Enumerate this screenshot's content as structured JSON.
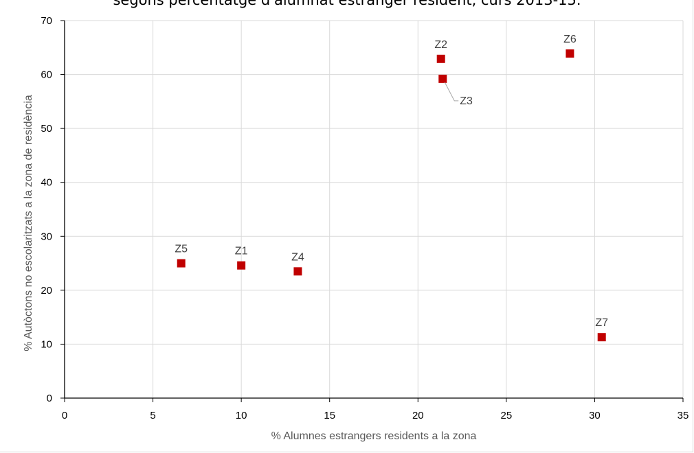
{
  "chart_data": {
    "type": "scatter",
    "title": "segons percentatge d'alumnat estranger resident, curs 2013-15.",
    "xlabel": "% Alumnes estrangers residents a la zona",
    "ylabel": "% Autòctons no escolaritzats a la zona de residència",
    "xlim": [
      0,
      35
    ],
    "ylim": [
      0,
      70
    ],
    "xticks": [
      0,
      5,
      10,
      15,
      20,
      25,
      30,
      35
    ],
    "yticks": [
      0,
      10,
      20,
      30,
      40,
      50,
      60,
      70
    ],
    "grid": true,
    "marker_color": "#c00000",
    "points": [
      {
        "label": "Z1",
        "x": 10.0,
        "y": 24.6,
        "label_pos": "above"
      },
      {
        "label": "Z2",
        "x": 21.3,
        "y": 62.9,
        "label_pos": "above"
      },
      {
        "label": "Z3",
        "x": 21.4,
        "y": 59.2,
        "label_pos": "leader-right"
      },
      {
        "label": "Z4",
        "x": 13.2,
        "y": 23.5,
        "label_pos": "above"
      },
      {
        "label": "Z5",
        "x": 6.6,
        "y": 25.0,
        "label_pos": "above"
      },
      {
        "label": "Z6",
        "x": 28.6,
        "y": 63.9,
        "label_pos": "above"
      },
      {
        "label": "Z7",
        "x": 30.4,
        "y": 11.3,
        "label_pos": "above"
      }
    ]
  }
}
